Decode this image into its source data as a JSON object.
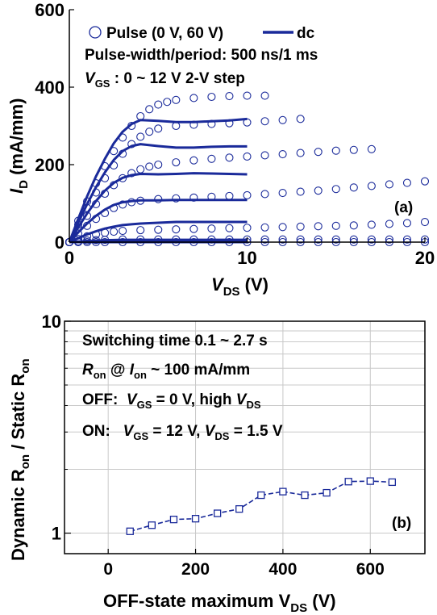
{
  "chart_data": [
    {
      "type": "scatter",
      "panel_label": "(a)",
      "xlabel": "V",
      "xlabel_sub": "DS",
      "xlabel_unit": " (V)",
      "ylabel": "I",
      "ylabel_sub": "D",
      "ylabel_unit": " (mA/mm)",
      "xlim": [
        0,
        20
      ],
      "ylim": [
        0,
        600
      ],
      "xticks": [
        0,
        10,
        20
      ],
      "yticks": [
        0,
        200,
        400,
        600
      ],
      "xtick_labels": [
        "0",
        "10",
        "20"
      ],
      "ytick_labels": [
        "0",
        "200",
        "400",
        "600"
      ],
      "legend": {
        "pulse_label": "Pulse (0 V, 60 V)",
        "dc_label": "dc",
        "note": "Pulse-width/period: 500 ns/1 ms",
        "vgs_symbol": "V",
        "vgs_sub": "GS",
        "vgs_text": " : 0 ~ 12 V 2-V step"
      },
      "pulse_series": [
        {
          "vgs": 0,
          "points": [
            [
              0,
              0
            ],
            [
              0.5,
              0
            ],
            [
              1,
              0
            ],
            [
              1.5,
              0
            ],
            [
              2,
              0
            ],
            [
              3,
              0
            ],
            [
              4,
              0
            ],
            [
              5,
              0
            ],
            [
              6,
              0
            ],
            [
              7,
              0
            ],
            [
              8,
              0
            ],
            [
              9,
              0
            ],
            [
              10,
              0
            ],
            [
              11,
              0
            ],
            [
              12,
              0
            ],
            [
              13,
              0
            ],
            [
              14,
              0
            ],
            [
              15,
              0
            ],
            [
              16,
              0
            ],
            [
              17,
              0
            ],
            [
              18,
              0
            ],
            [
              19,
              0
            ],
            [
              20,
              0
            ]
          ]
        },
        {
          "vgs": 2,
          "points": [
            [
              0,
              0
            ],
            [
              0.5,
              2
            ],
            [
              1,
              4
            ],
            [
              1.5,
              5
            ],
            [
              2,
              6
            ],
            [
              3,
              7
            ],
            [
              4,
              7
            ],
            [
              5,
              7
            ],
            [
              6,
              7
            ],
            [
              7,
              7
            ],
            [
              8,
              7
            ],
            [
              9,
              7
            ],
            [
              10,
              7
            ],
            [
              11,
              7
            ],
            [
              12,
              7
            ],
            [
              13,
              7
            ],
            [
              14,
              7
            ],
            [
              15,
              7
            ],
            [
              16,
              7
            ],
            [
              17,
              7
            ],
            [
              18,
              7
            ],
            [
              19,
              7
            ],
            [
              20,
              7
            ]
          ]
        },
        {
          "vgs": 4,
          "points": [
            [
              0,
              0
            ],
            [
              0.5,
              8
            ],
            [
              1,
              15
            ],
            [
              1.5,
              20
            ],
            [
              2,
              24
            ],
            [
              2.5,
              27
            ],
            [
              3,
              29
            ],
            [
              4,
              31
            ],
            [
              5,
              32
            ],
            [
              6,
              33
            ],
            [
              7,
              34
            ],
            [
              8,
              35
            ],
            [
              9,
              36
            ],
            [
              10,
              37
            ],
            [
              11,
              38
            ],
            [
              12,
              39
            ],
            [
              13,
              40
            ],
            [
              14,
              41
            ],
            [
              15,
              42
            ],
            [
              16,
              43
            ],
            [
              17,
              45
            ],
            [
              18,
              47
            ],
            [
              19,
              49
            ],
            [
              20,
              52
            ]
          ]
        },
        {
          "vgs": 6,
          "points": [
            [
              0,
              0
            ],
            [
              0.5,
              22
            ],
            [
              1,
              42
            ],
            [
              1.5,
              60
            ],
            [
              2,
              75
            ],
            [
              2.5,
              88
            ],
            [
              3,
              97
            ],
            [
              3.5,
              103
            ],
            [
              4,
              107
            ],
            [
              5,
              111
            ],
            [
              6,
              113
            ],
            [
              7,
              115
            ],
            [
              8,
              117
            ],
            [
              9,
              119
            ],
            [
              10,
              121
            ],
            [
              11,
              124
            ],
            [
              12,
              127
            ],
            [
              13,
              130
            ],
            [
              14,
              133
            ],
            [
              15,
              137
            ],
            [
              16,
              141
            ],
            [
              17,
              145
            ],
            [
              18,
              149
            ],
            [
              19,
              153
            ],
            [
              20,
              157
            ]
          ]
        },
        {
          "vgs": 8,
          "points": [
            [
              0,
              0
            ],
            [
              0.5,
              35
            ],
            [
              1,
              68
            ],
            [
              1.5,
              98
            ],
            [
              2,
              125
            ],
            [
              2.5,
              147
            ],
            [
              3,
              165
            ],
            [
              3.5,
              178
            ],
            [
              4,
              188
            ],
            [
              4.5,
              195
            ],
            [
              5,
              200
            ],
            [
              6,
              206
            ],
            [
              7,
              211
            ],
            [
              8,
              215
            ],
            [
              9,
              218
            ],
            [
              10,
              221
            ],
            [
              11,
              224
            ],
            [
              12,
              227
            ],
            [
              13,
              230
            ],
            [
              14,
              233
            ],
            [
              15,
              236
            ],
            [
              16,
              238
            ],
            [
              17,
              240
            ]
          ]
        },
        {
          "vgs": 10,
          "points": [
            [
              0,
              0
            ],
            [
              0.5,
              45
            ],
            [
              1,
              88
            ],
            [
              1.5,
              128
            ],
            [
              2,
              165
            ],
            [
              2.5,
              198
            ],
            [
              3,
              228
            ],
            [
              3.5,
              253
            ],
            [
              4,
              272
            ],
            [
              4.5,
              285
            ],
            [
              5,
              293
            ],
            [
              6,
              300
            ],
            [
              7,
              303
            ],
            [
              8,
              305
            ],
            [
              9,
              307
            ],
            [
              10,
              309
            ],
            [
              11,
              312
            ],
            [
              12,
              315
            ],
            [
              13,
              318
            ]
          ]
        },
        {
          "vgs": 12,
          "points": [
            [
              0,
              0
            ],
            [
              0.5,
              55
            ],
            [
              1,
              105
            ],
            [
              1.5,
              152
            ],
            [
              2,
              196
            ],
            [
              2.5,
              235
            ],
            [
              3,
              270
            ],
            [
              3.5,
              300
            ],
            [
              4,
              325
            ],
            [
              4.5,
              343
            ],
            [
              5,
              355
            ],
            [
              5.5,
              362
            ],
            [
              6,
              367
            ],
            [
              7,
              372
            ],
            [
              8,
              375
            ],
            [
              9,
              377
            ],
            [
              10,
              378
            ],
            [
              11,
              378
            ]
          ]
        }
      ],
      "dc_series": [
        {
          "vgs": 0,
          "points": [
            [
              0,
              0
            ],
            [
              10,
              0
            ]
          ]
        },
        {
          "vgs": 2,
          "points": [
            [
              0,
              0
            ],
            [
              1,
              3
            ],
            [
              2,
              5
            ],
            [
              3,
              6
            ],
            [
              10,
              6
            ]
          ]
        },
        {
          "vgs": 4,
          "points": [
            [
              0,
              0
            ],
            [
              0.5,
              10
            ],
            [
              1,
              20
            ],
            [
              1.5,
              28
            ],
            [
              2,
              35
            ],
            [
              2.5,
              40
            ],
            [
              3,
              44
            ],
            [
              3.5,
              46
            ],
            [
              4,
              48
            ],
            [
              5,
              50
            ],
            [
              6,
              52
            ],
            [
              7,
              52
            ],
            [
              8,
              52
            ],
            [
              9,
              52
            ],
            [
              10,
              52
            ]
          ]
        },
        {
          "vgs": 6,
          "points": [
            [
              0,
              0
            ],
            [
              0.5,
              25
            ],
            [
              1,
              48
            ],
            [
              1.5,
              68
            ],
            [
              2,
              84
            ],
            [
              2.5,
              96
            ],
            [
              3,
              103
            ],
            [
              3.5,
              106
            ],
            [
              4,
              108
            ],
            [
              5,
              108
            ],
            [
              6,
              109
            ],
            [
              7,
              109
            ],
            [
              8,
              109
            ],
            [
              9,
              109
            ],
            [
              10,
              109
            ]
          ]
        },
        {
          "vgs": 8,
          "points": [
            [
              0,
              0
            ],
            [
              0.5,
              38
            ],
            [
              1,
              74
            ],
            [
              1.5,
              106
            ],
            [
              2,
              133
            ],
            [
              2.5,
              153
            ],
            [
              3,
              166
            ],
            [
              3.5,
              173
            ],
            [
              4,
              176
            ],
            [
              5,
              175
            ],
            [
              6,
              176
            ],
            [
              7,
              178
            ],
            [
              8,
              177
            ],
            [
              9,
              176
            ],
            [
              10,
              175
            ]
          ]
        },
        {
          "vgs": 10,
          "points": [
            [
              0,
              0
            ],
            [
              0.5,
              50
            ],
            [
              1,
              98
            ],
            [
              1.5,
              142
            ],
            [
              2,
              180
            ],
            [
              2.5,
              212
            ],
            [
              3,
              235
            ],
            [
              3.5,
              248
            ],
            [
              4,
              253
            ],
            [
              5,
              248
            ],
            [
              6,
              244
            ],
            [
              7,
              244
            ],
            [
              8,
              246
            ],
            [
              9,
              247
            ],
            [
              10,
              247
            ]
          ]
        },
        {
          "vgs": 12,
          "points": [
            [
              0,
              0
            ],
            [
              0.5,
              60
            ],
            [
              1,
              118
            ],
            [
              1.5,
              170
            ],
            [
              2,
              215
            ],
            [
              2.5,
              255
            ],
            [
              3,
              285
            ],
            [
              3.5,
              305
            ],
            [
              4,
              315
            ],
            [
              5,
              313
            ],
            [
              6,
              310
            ],
            [
              7,
              310
            ],
            [
              8,
              312
            ],
            [
              9,
              314
            ],
            [
              10,
              318
            ]
          ]
        }
      ]
    },
    {
      "type": "line",
      "panel_label": "(b)",
      "xlabel": "OFF-state maximum V",
      "xlabel_sub": "DS",
      "xlabel_unit": " (V)",
      "ylabel_pre": "Dynamic R",
      "ylabel_sub1": "on",
      "ylabel_mid": " / Static R",
      "ylabel_sub2": "on",
      "xlim": [
        -100,
        725
      ],
      "ylim": [
        0.8,
        10
      ],
      "y_scale": "log",
      "grid": true,
      "xticks": [
        0,
        200,
        400,
        600
      ],
      "xtick_labels": [
        "0",
        "200",
        "400",
        "600"
      ],
      "yticks_labeled": [
        1,
        10
      ],
      "ytick_labels": [
        "1",
        "10"
      ],
      "annotations": {
        "line1": "Switching time 0.1 ~ 2.7 s",
        "line2_r": "R",
        "line2_r_sub": "on",
        "line2_at": " @ ",
        "line2_i": "I",
        "line2_i_sub": "on",
        "line2_rest": " ~ 100 mA/mm",
        "line3_pre": "OFF:  ",
        "line3_v": "V",
        "line3_v_sub": "GS",
        "line3_mid": " = 0 V, high ",
        "line3_v2": "V",
        "line3_v2_sub": "DS",
        "line4_pre": "ON:   ",
        "line4_v": "V",
        "line4_v_sub": "GS",
        "line4_mid": " = 12 V, ",
        "line4_v2": "V",
        "line4_v2_sub": "DS",
        "line4_rest": " = 1.5 V"
      },
      "x": [
        50,
        100,
        150,
        200,
        250,
        300,
        350,
        400,
        450,
        500,
        550,
        600,
        650
      ],
      "y": [
        1.02,
        1.09,
        1.16,
        1.17,
        1.24,
        1.3,
        1.51,
        1.57,
        1.51,
        1.55,
        1.75,
        1.76,
        1.74
      ],
      "color": "#1a2a9a"
    }
  ],
  "colors": {
    "series": "#1a2a9a",
    "pulse_marker": "#1a2a9a",
    "grid": "#c8c8c8"
  }
}
